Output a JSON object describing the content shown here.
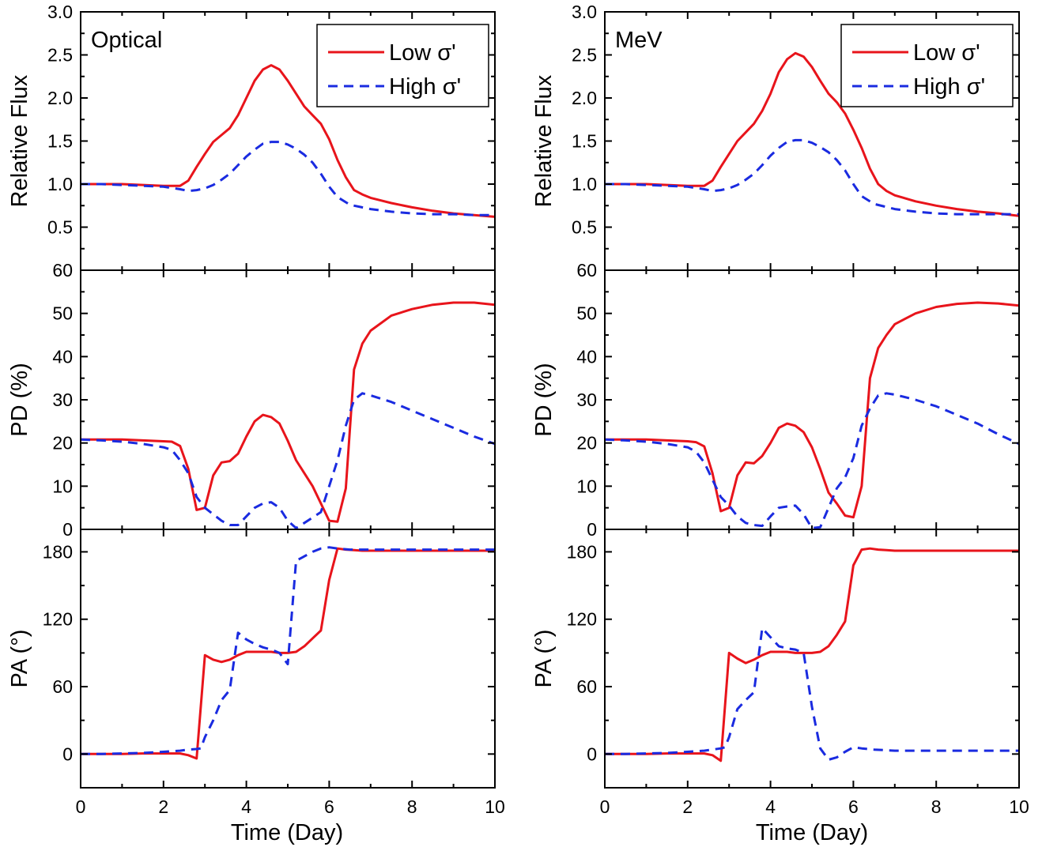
{
  "figure": {
    "xlabel": "Time (Day)",
    "panel_labels": [
      "Optical",
      "MeV"
    ],
    "row_ylabels": [
      "Relative Flux",
      "PD (%)",
      "PA (°)"
    ],
    "legend": [
      "Low σ'",
      "High σ'"
    ]
  },
  "colors": {
    "low": "#e8141b",
    "high": "#1a2be0"
  },
  "chart_data": [
    {
      "type": "line",
      "column": "Optical",
      "row": "flux",
      "xlim": [
        0,
        10
      ],
      "ylim": [
        0,
        3.0
      ],
      "xticks": [
        0,
        2,
        4,
        6,
        8,
        10
      ],
      "yticks": [
        0.5,
        1.0,
        1.5,
        2.0,
        2.5,
        3.0
      ],
      "ytick_labels": [
        "0.5",
        "1.0",
        "1.5",
        "2.0",
        "2.5",
        "3.0"
      ],
      "ylabel": "Relative Flux",
      "panel_label": "Optical",
      "legend": [
        "Low σ'",
        "High σ'"
      ],
      "series": [
        {
          "name": "Low σ'",
          "x": [
            0,
            0.5,
            1,
            1.5,
            2,
            2.4,
            2.6,
            2.8,
            3,
            3.2,
            3.4,
            3.6,
            3.8,
            4,
            4.2,
            4.4,
            4.6,
            4.8,
            5,
            5.2,
            5.4,
            5.6,
            5.8,
            6,
            6.2,
            6.4,
            6.6,
            6.8,
            7,
            7.5,
            8,
            8.5,
            9,
            9.5,
            10
          ],
          "y": [
            1.0,
            1.0,
            1.0,
            0.99,
            0.98,
            0.98,
            1.04,
            1.2,
            1.35,
            1.49,
            1.57,
            1.65,
            1.8,
            2.0,
            2.2,
            2.33,
            2.38,
            2.33,
            2.2,
            2.05,
            1.9,
            1.8,
            1.7,
            1.52,
            1.28,
            1.08,
            0.93,
            0.88,
            0.84,
            0.78,
            0.73,
            0.69,
            0.66,
            0.64,
            0.62
          ]
        },
        {
          "name": "High σ'",
          "x": [
            0,
            0.5,
            1,
            1.5,
            2,
            2.4,
            2.6,
            2.8,
            3,
            3.2,
            3.4,
            3.6,
            3.8,
            4,
            4.2,
            4.4,
            4.6,
            4.8,
            5,
            5.2,
            5.4,
            5.6,
            5.8,
            6,
            6.2,
            6.5,
            7,
            7.5,
            8,
            8.5,
            9,
            9.5,
            10
          ],
          "y": [
            1.0,
            1.0,
            0.99,
            0.98,
            0.97,
            0.94,
            0.92,
            0.93,
            0.95,
            0.99,
            1.05,
            1.12,
            1.22,
            1.32,
            1.4,
            1.47,
            1.49,
            1.49,
            1.46,
            1.41,
            1.34,
            1.25,
            1.12,
            0.97,
            0.85,
            0.76,
            0.71,
            0.68,
            0.66,
            0.65,
            0.65,
            0.64,
            0.64
          ]
        }
      ]
    },
    {
      "type": "line",
      "column": "Optical",
      "row": "pd",
      "xlim": [
        0,
        10
      ],
      "ylim": [
        0,
        60
      ],
      "xticks": [
        0,
        2,
        4,
        6,
        8,
        10
      ],
      "yticks": [
        0,
        10,
        20,
        30,
        40,
        50,
        60
      ],
      "ytick_labels": [
        "0",
        "10",
        "20",
        "30",
        "40",
        "50",
        "60"
      ],
      "ylabel": "PD (%)",
      "series": [
        {
          "name": "Low σ'",
          "x": [
            0,
            0.5,
            1,
            1.5,
            2,
            2.2,
            2.4,
            2.6,
            2.8,
            3,
            3.2,
            3.4,
            3.6,
            3.8,
            4,
            4.2,
            4.4,
            4.6,
            4.8,
            5,
            5.2,
            5.6,
            6,
            6.2,
            6.4,
            6.6,
            6.8,
            7,
            7.5,
            8,
            8.5,
            9,
            9.5,
            10
          ],
          "y": [
            20.8,
            20.8,
            20.8,
            20.6,
            20.4,
            20.3,
            19.3,
            14.0,
            4.5,
            5.0,
            12.5,
            15.5,
            15.8,
            17.5,
            21.5,
            25.0,
            26.5,
            26.0,
            24.5,
            20.5,
            16.0,
            10.0,
            2.0,
            1.8,
            9.5,
            37.0,
            43.0,
            46.0,
            49.5,
            51.0,
            52.0,
            52.5,
            52.5,
            52.0
          ]
        },
        {
          "name": "High σ'",
          "x": [
            0,
            0.5,
            1,
            1.5,
            2,
            2.2,
            2.4,
            2.6,
            2.8,
            3,
            3.2,
            3.4,
            3.6,
            3.8,
            4,
            4.2,
            4.4,
            4.6,
            4.8,
            5,
            5.2,
            5.4,
            5.8,
            6,
            6.2,
            6.4,
            6.6,
            6.8,
            7,
            7.5,
            8,
            8.5,
            9,
            9.5,
            10
          ],
          "y": [
            20.8,
            20.6,
            20.3,
            19.8,
            19.0,
            18.4,
            16.0,
            13.0,
            7.5,
            5.0,
            3.5,
            2.0,
            1.0,
            1.0,
            3.0,
            5.0,
            6.0,
            6.3,
            5.0,
            2.0,
            0.3,
            1.5,
            4.0,
            10.0,
            16.0,
            24.0,
            30.0,
            31.5,
            31.0,
            29.5,
            27.5,
            25.5,
            23.5,
            21.5,
            19.8
          ]
        }
      ]
    },
    {
      "type": "line",
      "column": "Optical",
      "row": "pa",
      "xlim": [
        0,
        10
      ],
      "ylim": [
        -30,
        200
      ],
      "xticks": [
        0,
        2,
        4,
        6,
        8,
        10
      ],
      "yticks": [
        0,
        60,
        120,
        180
      ],
      "ytick_labels": [
        "0",
        "60",
        "120",
        "180"
      ],
      "ylabel": "PA (°)",
      "xtick_labels": [
        "0",
        "2",
        "4",
        "6",
        "8",
        "10"
      ],
      "xlabel": "Time (Day)",
      "series": [
        {
          "name": "Low σ'",
          "x": [
            0,
            0.5,
            1,
            1.5,
            2,
            2.4,
            2.6,
            2.8,
            3,
            3.2,
            3.4,
            3.6,
            3.8,
            4,
            4.2,
            4.4,
            4.6,
            4.8,
            5,
            5.2,
            5.4,
            5.6,
            5.8,
            6,
            6.2,
            6.4,
            6.6,
            6.8,
            7,
            7.5,
            8,
            8.5,
            9,
            9.5,
            10
          ],
          "y": [
            0,
            0,
            0,
            0.5,
            0.5,
            0.5,
            -1,
            -4,
            88,
            84,
            82,
            84,
            88,
            91,
            91,
            91,
            91,
            90,
            90,
            91,
            96,
            103,
            110,
            155,
            183,
            182,
            181.5,
            181,
            181,
            181,
            181,
            181,
            181,
            181,
            181
          ]
        },
        {
          "name": "High σ'",
          "x": [
            0,
            0.5,
            1,
            1.5,
            2,
            2.4,
            2.6,
            2.8,
            2.9,
            3,
            3.2,
            3.4,
            3.6,
            3.8,
            4,
            4.2,
            4.4,
            4.6,
            4.8,
            5,
            5.2,
            5.4,
            5.6,
            5.8,
            6,
            6.2,
            6.5,
            7,
            7.5,
            8,
            8.5,
            9,
            9.5,
            10
          ],
          "y": [
            0,
            0,
            0.5,
            1,
            2,
            3,
            4,
            4.5,
            5,
            15,
            30,
            48,
            57,
            108,
            102,
            98,
            95,
            93,
            90,
            80,
            172,
            176,
            180,
            183,
            184,
            183,
            182,
            182,
            182,
            182,
            182,
            182,
            182,
            182
          ]
        }
      ]
    },
    {
      "type": "line",
      "column": "MeV",
      "row": "flux",
      "xlim": [
        0,
        10
      ],
      "ylim": [
        0,
        3.0
      ],
      "xticks": [
        0,
        2,
        4,
        6,
        8,
        10
      ],
      "yticks": [
        0.5,
        1.0,
        1.5,
        2.0,
        2.5,
        3.0
      ],
      "ytick_labels": [
        "0.5",
        "1.0",
        "1.5",
        "2.0",
        "2.5",
        "3.0"
      ],
      "ylabel": "Relative Flux",
      "panel_label": "MeV",
      "legend": [
        "Low σ'",
        "High σ'"
      ],
      "series": [
        {
          "name": "Low σ'",
          "x": [
            0,
            0.5,
            1,
            1.5,
            2,
            2.4,
            2.6,
            2.8,
            3,
            3.2,
            3.4,
            3.6,
            3.8,
            4,
            4.2,
            4.4,
            4.6,
            4.8,
            5,
            5.2,
            5.4,
            5.6,
            5.8,
            6,
            6.2,
            6.4,
            6.6,
            6.8,
            7,
            7.5,
            8,
            8.5,
            9,
            9.5,
            10
          ],
          "y": [
            1.0,
            1.0,
            1.0,
            0.99,
            0.98,
            0.98,
            1.04,
            1.2,
            1.35,
            1.5,
            1.6,
            1.7,
            1.85,
            2.05,
            2.3,
            2.45,
            2.52,
            2.48,
            2.36,
            2.2,
            2.05,
            1.95,
            1.82,
            1.63,
            1.42,
            1.18,
            1.0,
            0.92,
            0.87,
            0.8,
            0.75,
            0.71,
            0.68,
            0.66,
            0.63
          ]
        },
        {
          "name": "High σ'",
          "x": [
            0,
            0.5,
            1,
            1.5,
            2,
            2.4,
            2.6,
            2.8,
            3,
            3.2,
            3.4,
            3.6,
            3.8,
            4,
            4.2,
            4.4,
            4.6,
            4.8,
            5,
            5.2,
            5.4,
            5.6,
            5.8,
            6,
            6.2,
            6.5,
            7,
            7.5,
            8,
            8.5,
            9,
            9.5,
            10
          ],
          "y": [
            1.0,
            1.0,
            0.99,
            0.98,
            0.97,
            0.94,
            0.92,
            0.93,
            0.95,
            0.99,
            1.05,
            1.12,
            1.22,
            1.33,
            1.42,
            1.49,
            1.51,
            1.51,
            1.48,
            1.43,
            1.37,
            1.28,
            1.16,
            1.0,
            0.86,
            0.77,
            0.71,
            0.68,
            0.66,
            0.65,
            0.65,
            0.65,
            0.65
          ]
        }
      ]
    },
    {
      "type": "line",
      "column": "MeV",
      "row": "pd",
      "xlim": [
        0,
        10
      ],
      "ylim": [
        0,
        60
      ],
      "xticks": [
        0,
        2,
        4,
        6,
        8,
        10
      ],
      "yticks": [
        0,
        10,
        20,
        30,
        40,
        50,
        60
      ],
      "ytick_labels": [
        "0",
        "10",
        "20",
        "30",
        "40",
        "50",
        "60"
      ],
      "ylabel": "PD (%)",
      "series": [
        {
          "name": "Low σ'",
          "x": [
            0,
            0.5,
            1,
            1.5,
            2,
            2.2,
            2.4,
            2.6,
            2.8,
            3,
            3.2,
            3.4,
            3.6,
            3.8,
            4,
            4.2,
            4.4,
            4.6,
            4.8,
            5,
            5.2,
            5.4,
            5.6,
            5.8,
            6,
            6.2,
            6.4,
            6.6,
            6.8,
            7,
            7.5,
            8,
            8.5,
            9,
            9.5,
            10
          ],
          "y": [
            20.8,
            20.8,
            20.8,
            20.6,
            20.4,
            20.2,
            19.2,
            13.0,
            4.2,
            5.0,
            12.5,
            15.5,
            15.3,
            17.0,
            20.0,
            23.5,
            24.5,
            24.0,
            22.5,
            19.0,
            14.0,
            8.5,
            6.0,
            3.2,
            2.8,
            10.0,
            35.0,
            42.0,
            45.0,
            47.5,
            50.0,
            51.5,
            52.2,
            52.5,
            52.3,
            51.8
          ]
        },
        {
          "name": "High σ'",
          "x": [
            0,
            0.5,
            1,
            1.5,
            2,
            2.2,
            2.4,
            2.6,
            2.8,
            3,
            3.2,
            3.4,
            3.6,
            3.8,
            4,
            4.2,
            4.4,
            4.6,
            4.8,
            5,
            5.2,
            5.4,
            5.6,
            5.8,
            6,
            6.2,
            6.4,
            6.6,
            6.8,
            7,
            7.5,
            8,
            8.5,
            9,
            9.5,
            10
          ],
          "y": [
            20.8,
            20.6,
            20.3,
            19.8,
            19.0,
            18.0,
            15.5,
            11.5,
            7.5,
            5.5,
            3.0,
            1.5,
            1.0,
            0.8,
            3.0,
            5.0,
            5.3,
            5.5,
            3.5,
            0.3,
            0.5,
            5.0,
            9.5,
            12.0,
            16.5,
            24.0,
            28.0,
            31.0,
            31.5,
            31.2,
            30.0,
            28.5,
            26.5,
            24.5,
            22.0,
            19.8
          ]
        }
      ]
    },
    {
      "type": "line",
      "column": "MeV",
      "row": "pa",
      "xlim": [
        0,
        10
      ],
      "ylim": [
        -30,
        200
      ],
      "xticks": [
        0,
        2,
        4,
        6,
        8,
        10
      ],
      "yticks": [
        0,
        60,
        120,
        180
      ],
      "ytick_labels": [
        "0",
        "60",
        "120",
        "180"
      ],
      "ylabel": "PA (°)",
      "xtick_labels": [
        "0",
        "2",
        "4",
        "6",
        "8",
        "10"
      ],
      "xlabel": "Time (Day)",
      "series": [
        {
          "name": "Low σ'",
          "x": [
            0,
            0.5,
            1,
            1.5,
            2,
            2.4,
            2.6,
            2.8,
            3,
            3.2,
            3.4,
            3.6,
            3.8,
            4,
            4.2,
            4.4,
            4.6,
            4.8,
            5,
            5.2,
            5.4,
            5.6,
            5.8,
            6,
            6.2,
            6.4,
            6.6,
            6.8,
            7,
            7.5,
            8,
            8.5,
            9,
            9.5,
            10
          ],
          "y": [
            0,
            0,
            0,
            0.5,
            0.5,
            0.5,
            -1,
            -6,
            90,
            85,
            81,
            84,
            88,
            91,
            91,
            91,
            90,
            90,
            90,
            91,
            96,
            106,
            118,
            168,
            182,
            183,
            182,
            181.5,
            181,
            181,
            181,
            181,
            181,
            181,
            181
          ]
        },
        {
          "name": "High σ'",
          "x": [
            0,
            0.5,
            1,
            1.5,
            2,
            2.4,
            2.6,
            2.8,
            2.9,
            3,
            3.2,
            3.4,
            3.6,
            3.8,
            4,
            4.2,
            4.4,
            4.6,
            4.8,
            5,
            5.2,
            5.4,
            5.6,
            5.8,
            6,
            6.2,
            6.5,
            7,
            7.5,
            8,
            8.5,
            9,
            9.5,
            10
          ],
          "y": [
            0,
            0,
            0.5,
            1,
            2,
            3,
            4,
            5,
            6,
            15,
            40,
            48,
            55,
            112,
            104,
            96,
            94,
            93,
            90,
            42,
            5,
            -5,
            -3,
            2,
            6,
            5,
            4,
            3,
            3,
            3,
            3,
            3,
            3,
            3
          ]
        }
      ]
    }
  ]
}
